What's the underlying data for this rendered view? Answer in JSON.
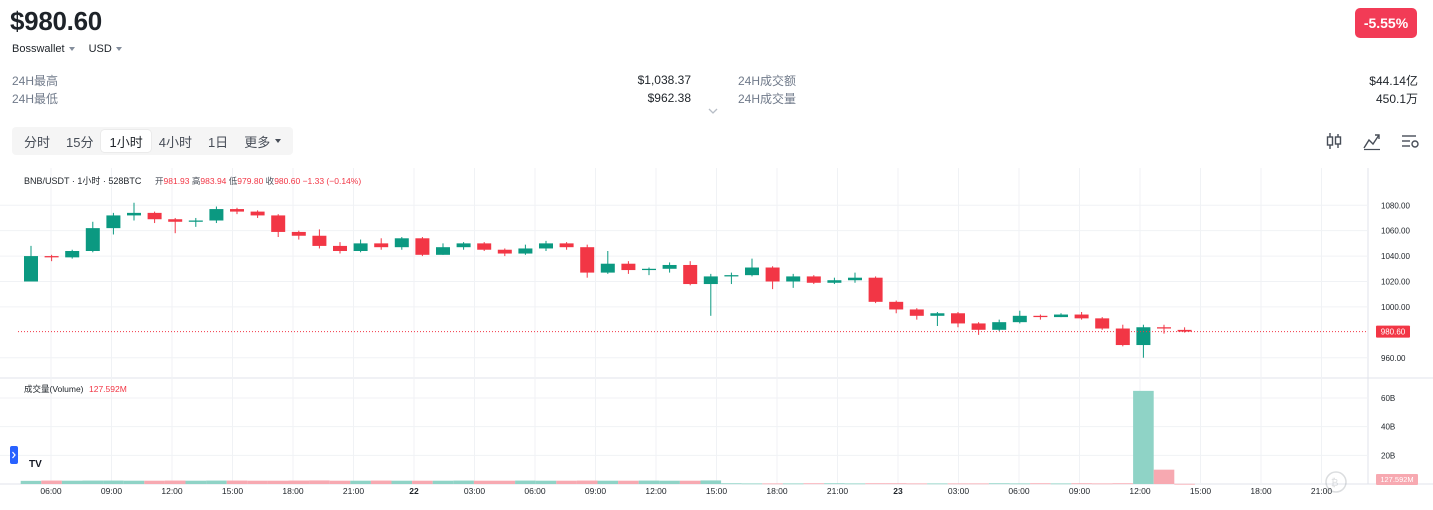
{
  "header": {
    "price": "$980.60",
    "change": "-5.55%",
    "exchange": "Bosswallet",
    "currency": "USD"
  },
  "stats": {
    "high_label": "24H最高",
    "high_value": "$1,038.37",
    "low_label": "24H最低",
    "low_value": "$962.38",
    "turnover_label": "24H成交额",
    "turnover_value": "$44.14亿",
    "volume_label": "24H成交量",
    "volume_value": "450.1万"
  },
  "timeframes": [
    "分时",
    "15分",
    "1小时",
    "4小时",
    "1日",
    "更多"
  ],
  "active_timeframe": "1小时",
  "colors": {
    "up": "#0b9981",
    "down": "#f23645",
    "up_vol": "#8fd3c6",
    "down_vol": "#f7a9b1",
    "badge": "#f23b56"
  },
  "chart_data": {
    "type": "candlestick",
    "title": "BNB/USDT · 1小时 · 528BTC",
    "ohlc_legend": {
      "open_label": "开",
      "open": "981.93",
      "high_label": "高",
      "high": "983.94",
      "low_label": "低",
      "low": "979.80",
      "close_label": "收",
      "close": "980.60",
      "change": "−1.33 (−0.14%)"
    },
    "current_price_label": "980.60",
    "y_ticks": [
      1080,
      1060,
      1040,
      1020,
      1000,
      960
    ],
    "y_tick_labels": [
      "1080.00",
      "1060.00",
      "1040.00",
      "1020.00",
      "1000.00",
      "960.00"
    ],
    "ylim": [
      948,
      1092
    ],
    "x_tick_labels": [
      "06:00",
      "09:00",
      "12:00",
      "15:00",
      "18:00",
      "21:00",
      "22",
      "03:00",
      "06:00",
      "09:00",
      "12:00",
      "15:00",
      "18:00",
      "21:00",
      "23",
      "03:00",
      "06:00",
      "09:00",
      "12:00",
      "15:00",
      "18:00",
      "21:00"
    ],
    "candles": [
      [
        1020,
        1040,
        1020,
        1048
      ],
      [
        1040,
        1039,
        1036,
        1041
      ],
      [
        1039,
        1044,
        1038,
        1045
      ],
      [
        1044,
        1062,
        1043,
        1067
      ],
      [
        1062,
        1072,
        1057,
        1074
      ],
      [
        1072,
        1074,
        1068,
        1082
      ],
      [
        1074,
        1069,
        1066,
        1075
      ],
      [
        1069,
        1067,
        1058,
        1070
      ],
      [
        1067,
        1068,
        1063,
        1070
      ],
      [
        1068,
        1077,
        1066,
        1079
      ],
      [
        1077,
        1075,
        1073,
        1078
      ],
      [
        1075,
        1072,
        1070,
        1076
      ],
      [
        1072,
        1059,
        1055,
        1073
      ],
      [
        1059,
        1056,
        1053,
        1060
      ],
      [
        1056,
        1048,
        1046,
        1061
      ],
      [
        1048,
        1044,
        1042,
        1051
      ],
      [
        1044,
        1050,
        1043,
        1053
      ],
      [
        1050,
        1047,
        1045,
        1054
      ],
      [
        1047,
        1054,
        1045,
        1055
      ],
      [
        1054,
        1041,
        1040,
        1055
      ],
      [
        1041,
        1047,
        1041,
        1050
      ],
      [
        1047,
        1050,
        1045,
        1051
      ],
      [
        1050,
        1045,
        1044,
        1051
      ],
      [
        1045,
        1042,
        1040,
        1046
      ],
      [
        1042,
        1046,
        1041,
        1049
      ],
      [
        1046,
        1050,
        1044,
        1052
      ],
      [
        1050,
        1047,
        1045,
        1051
      ],
      [
        1047,
        1027,
        1023,
        1049
      ],
      [
        1027,
        1034,
        1026,
        1044
      ],
      [
        1034,
        1029,
        1026,
        1036
      ],
      [
        1029,
        1030,
        1025,
        1031
      ],
      [
        1030,
        1033,
        1027,
        1035
      ],
      [
        1033,
        1018,
        1017,
        1036
      ],
      [
        1018,
        1024,
        993,
        1026
      ],
      [
        1024,
        1025,
        1018,
        1027
      ],
      [
        1025,
        1031,
        1024,
        1038
      ],
      [
        1031,
        1020,
        1014,
        1032
      ],
      [
        1020,
        1024,
        1015,
        1026
      ],
      [
        1024,
        1019,
        1018,
        1025
      ],
      [
        1019,
        1021,
        1018,
        1023
      ],
      [
        1021,
        1023,
        1019,
        1027
      ],
      [
        1023,
        1004,
        1003,
        1024
      ],
      [
        1004,
        998,
        995,
        1005
      ],
      [
        998,
        993,
        990,
        999
      ],
      [
        993,
        995,
        985,
        996
      ],
      [
        995,
        987,
        984,
        996
      ],
      [
        987,
        982,
        978,
        988
      ],
      [
        982,
        988,
        981,
        990
      ],
      [
        988,
        993,
        987,
        997
      ],
      [
        993,
        992,
        990,
        994
      ],
      [
        992,
        994,
        992,
        995
      ],
      [
        994,
        991,
        990,
        996
      ],
      [
        991,
        983,
        982,
        992
      ],
      [
        983,
        970,
        969,
        986
      ],
      [
        970,
        984,
        960,
        986
      ],
      [
        984,
        983,
        979,
        986
      ],
      [
        981.93,
        980.6,
        979.8,
        983.94
      ]
    ],
    "volume_title": "成交量(Volume)",
    "volume_value_label": "127.592M",
    "volume_current_label": "127.592M",
    "volume_ticks": [
      60,
      40,
      20
    ],
    "volume_tick_labels": [
      "60B",
      "40B",
      "20B"
    ],
    "volume_ylim": [
      0,
      67
    ],
    "volumes": [
      2.2,
      2.4,
      2.3,
      2.4,
      2.4,
      2.3,
      2.3,
      2.4,
      2.3,
      2.4,
      2.4,
      2.3,
      2.3,
      2.4,
      2.5,
      2.3,
      2.3,
      2.4,
      2.3,
      2.3,
      2.3,
      2.4,
      2.3,
      2.3,
      2.4,
      2.3,
      2.3,
      2.4,
      2.3,
      2.3,
      2.4,
      2.3,
      2.3,
      2.5,
      0.5,
      0.4,
      0.4,
      0.4,
      0.5,
      0.5,
      0.4,
      0.5,
      0.5,
      0.4,
      0.4,
      0.4,
      0.4,
      0.5,
      0.4,
      0.5,
      0.4,
      0.5,
      0.4,
      0.5,
      65,
      10,
      0.13
    ]
  }
}
